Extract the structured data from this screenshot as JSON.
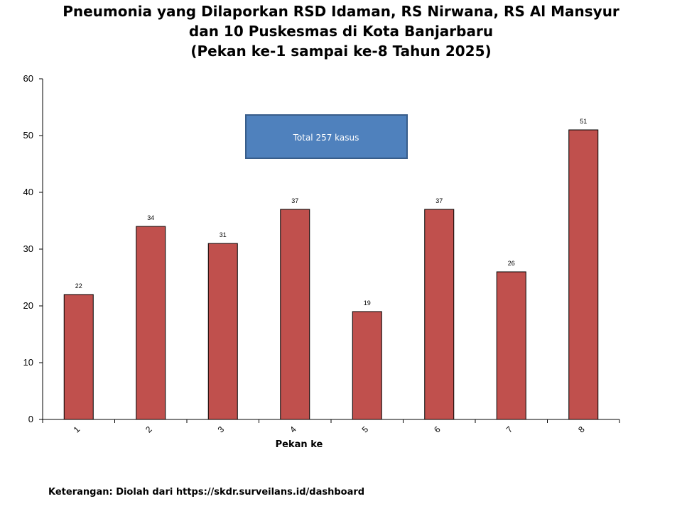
{
  "chart_data": {
    "type": "bar",
    "title_lines": [
      "Pneumonia yang Dilaporkan RSD Idaman, RS Nirwana, RS Al Mansyur",
      "dan 10 Puskesmas di Kota Banjarbaru",
      "(Pekan ke-1 sampai ke-8 Tahun 2025)"
    ],
    "xlabel": "Pekan ke",
    "ylabel": "",
    "categories": [
      "1",
      "2",
      "3",
      "4",
      "5",
      "6",
      "7",
      "8"
    ],
    "values": [
      22,
      34,
      31,
      37,
      19,
      37,
      26,
      51
    ],
    "ylim": [
      0,
      60
    ],
    "yticks": [
      0,
      10,
      20,
      30,
      40,
      50,
      60
    ],
    "bar_color": "#c0504d",
    "grid": false,
    "legend": "none",
    "annotation": {
      "text": "Total 257 kasus",
      "fill": "#4f81bd",
      "border": "#385d8a"
    }
  },
  "footnote": "Keterangan: Diolah dari https://skdr.surveilans.id/dashboard"
}
